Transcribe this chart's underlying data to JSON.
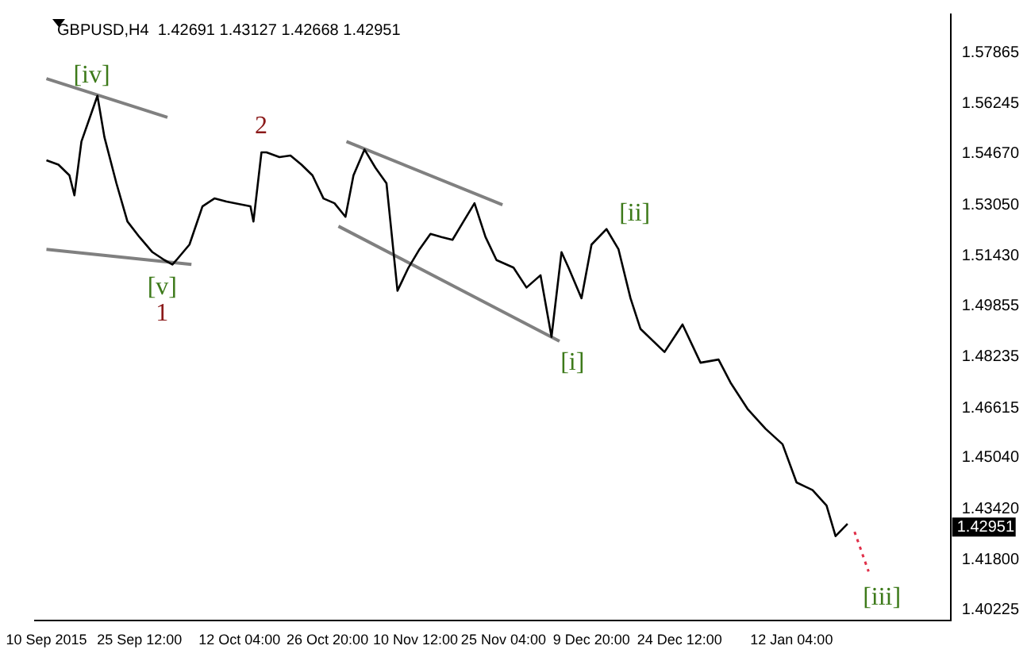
{
  "chart_data": {
    "type": "line",
    "title": "GBPUSD,H4  1.42691 1.43127 1.42668 1.42951",
    "xlim": [
      "2015-09-08T02:00",
      "2016-02-07T16:00"
    ],
    "xticks": [
      {
        "value": "2015-09-10T00:00",
        "label": "10 Sep 2015"
      },
      {
        "value": "2015-09-25T12:00",
        "label": "25 Sep 12:00"
      },
      {
        "value": "2015-10-12T04:00",
        "label": "12 Oct 04:00"
      },
      {
        "value": "2015-10-26T20:00",
        "label": "26 Oct 20:00"
      },
      {
        "value": "2015-11-10T12:00",
        "label": "10 Nov 12:00"
      },
      {
        "value": "2015-11-25T04:00",
        "label": "25 Nov 04:00"
      },
      {
        "value": "2015-12-09T20:00",
        "label": "9 Dec 20:00"
      },
      {
        "value": "2015-12-24T12:00",
        "label": "24 Dec 12:00"
      },
      {
        "value": "2016-01-12T04:00",
        "label": "12 Jan 04:00"
      }
    ],
    "ylim": [
      1.3988,
      1.5908
    ],
    "yticks": [
      1.57865,
      1.56245,
      {
        "value": 1.5467,
        "label": "1.54670"
      },
      {
        "value": 1.5305,
        "label": "1.53050"
      },
      {
        "value": 1.5143,
        "label": "1.51430"
      },
      1.49855,
      1.48235,
      1.46615,
      {
        "value": 1.4504,
        "label": "1.45040"
      },
      {
        "value": 1.4342,
        "label": "1.43420"
      },
      {
        "value": 1.418,
        "label": "1.41800"
      },
      1.40225
    ],
    "grid": false,
    "legend": false,
    "marker": "none",
    "annotations": [
      "[iv]",
      "[v]",
      "1",
      "2",
      "[i]",
      "[ii]",
      "[iii]",
      "1.42951"
    ],
    "series": [
      {
        "color": "#000000",
        "line_style": "solid",
        "x": [
          "2015-09-10T00:00",
          "2015-09-12T00:00",
          "2015-09-13T20:00",
          "2015-09-14T16:00",
          "2015-09-15T20:00",
          "2015-09-18T12:00",
          "2015-09-19T16:00",
          "2015-09-21T16:00",
          "2015-09-23T12:00",
          "2015-09-25T12:00",
          "2015-09-27T16:00",
          "2015-09-29T16:00",
          "2015-10-01T00:00",
          "2015-10-01T16:00",
          "2015-10-03T20:00",
          "2015-10-06T00:00",
          "2015-10-08T00:00",
          "2015-10-10T00:00",
          "2015-10-14T00:00",
          "2015-10-14T12:00",
          "2015-10-15T20:00",
          "2015-10-16T16:00",
          "2015-10-18T20:00",
          "2015-10-20T16:00",
          "2015-10-22T12:00",
          "2015-10-24T08:00",
          "2015-10-26T04:00",
          "2015-10-28T00:00",
          "2015-10-29T20:00",
          "2015-10-31T04:00",
          "2015-11-02T00:00",
          "2015-11-03T20:00",
          "2015-11-05T16:00",
          "2015-11-07T12:00",
          "2015-11-09T08:00",
          "2015-11-11T04:00",
          "2015-11-13T00:00",
          "2015-11-14T20:00",
          "2015-11-16T16:00",
          "2015-11-18T12:00",
          "2015-11-20T08:00",
          "2015-11-22T04:00",
          "2015-11-24T00:00",
          "2015-11-26T20:00",
          "2015-11-29T00:00",
          "2015-12-01T08:00",
          "2015-12-03T04:00",
          "2015-12-04T20:00",
          "2015-12-06T00:00",
          "2015-12-08T04:00",
          "2015-12-09T20:00",
          "2015-12-12T08:00",
          "2015-12-14T08:00",
          "2015-12-16T08:00",
          "2015-12-18T00:00",
          "2015-12-22T00:00",
          "2015-12-25T00:00",
          "2015-12-28T00:00",
          "2015-12-31T00:00",
          "2016-01-02T00:00",
          "2016-01-04T20:00",
          "2016-01-07T20:00",
          "2016-01-10T16:00",
          "2016-01-13T00:00",
          "2016-01-15T16:00",
          "2016-01-18T00:00",
          "2016-01-19T12:00",
          "2016-01-21T12:00"
        ],
        "values": [
          1.5446,
          1.5432,
          1.5398,
          1.5335,
          1.5505,
          1.565,
          1.5519,
          1.5373,
          1.5252,
          1.5203,
          1.5155,
          1.513,
          1.5116,
          1.513,
          1.5179,
          1.53,
          1.5325,
          1.5315,
          1.53,
          1.5252,
          1.5471,
          1.5471,
          1.5456,
          1.5461,
          1.5432,
          1.5398,
          1.5325,
          1.531,
          1.5267,
          1.5398,
          1.548,
          1.5422,
          1.5373,
          1.5033,
          1.5106,
          1.5164,
          1.5213,
          1.5203,
          1.5194,
          1.5252,
          1.531,
          1.5203,
          1.513,
          1.5106,
          1.5043,
          1.5082,
          1.4887,
          1.5155,
          1.5106,
          1.5009,
          1.5179,
          1.5228,
          1.5164,
          1.5009,
          1.4912,
          1.4839,
          1.4926,
          1.4805,
          1.4815,
          1.4742,
          1.4659,
          1.4596,
          1.4547,
          1.4426,
          1.4402,
          1.4353,
          1.4256,
          1.4295
        ]
      },
      {
        "color": "#808080",
        "line_style": "solid",
        "x": [
          "2015-09-10T00:00",
          "2015-09-30T04:00"
        ],
        "values": [
          1.5704,
          1.5582
        ]
      },
      {
        "color": "#808080",
        "line_style": "solid",
        "x": [
          "2015-09-10T00:00",
          "2015-10-04T04:00"
        ],
        "values": [
          1.5164,
          1.5116
        ]
      },
      {
        "color": "#808080",
        "line_style": "solid",
        "x": [
          "2015-10-30T00:00",
          "2015-11-25T00:00"
        ],
        "values": [
          1.5505,
          1.5305
        ]
      },
      {
        "color": "#808080",
        "line_style": "solid",
        "x": [
          "2015-10-28T16:00",
          "2015-12-04T12:00"
        ],
        "values": [
          1.5237,
          1.4873
        ]
      },
      {
        "color": "#e0304a",
        "line_style": "dotted",
        "x": [
          "2016-01-22T16:00",
          "2016-01-25T00:00"
        ],
        "values": [
          1.427,
          1.4144
        ]
      }
    ]
  }
}
